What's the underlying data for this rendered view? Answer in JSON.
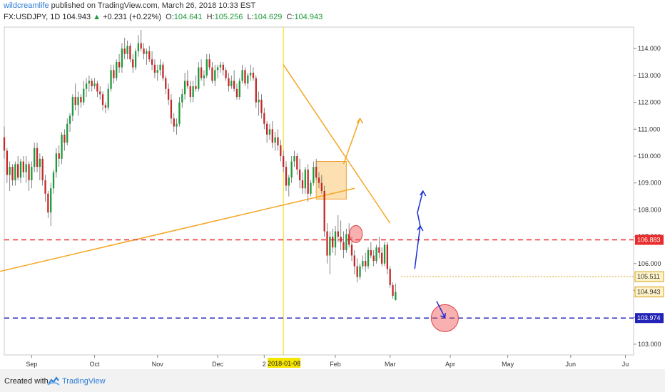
{
  "header": {
    "author": "wildcreamlife",
    "published_text": " published on TradingView.com, March 26, 2018 10:33 EST",
    "symbol": "FX:USDJPY, 1D",
    "last": "104.943",
    "change": "+0.231 (+0.22%)",
    "o_label": "O:",
    "o_value": "104.641",
    "h_label": "H:",
    "h_value": "105.256",
    "l_label": "L:",
    "l_value": "104.629",
    "c_label": "C:",
    "c_value": "104.943",
    "up_color": "#1d9a3a"
  },
  "footer": {
    "created_with": "Created with",
    "brand": "TradingView"
  },
  "chart_data": {
    "type": "candlestick",
    "symbol": "FX:USDJPY",
    "timeframe": "1D",
    "ylim": [
      102.6,
      114.8
    ],
    "y_ticks": [
      103.0,
      104.0,
      105.0,
      106.0,
      107.0,
      108.0,
      109.0,
      110.0,
      111.0,
      112.0,
      113.0,
      114.0
    ],
    "y_tick_labels": [
      "103.000",
      "104.000",
      "105.000",
      "106.000",
      "107.000",
      "108.000",
      "109.000",
      "110.000",
      "111.000",
      "112.000",
      "113.000",
      "114.000"
    ],
    "x_ticks": [
      {
        "label": "Sep",
        "idx": 10
      },
      {
        "label": "Oct",
        "idx": 33
      },
      {
        "label": "Nov",
        "idx": 56
      },
      {
        "label": "Dec",
        "idx": 78
      },
      {
        "label": "2",
        "idx": 95
      },
      {
        "label": "Feb",
        "idx": 121
      },
      {
        "label": "Mar",
        "idx": 141
      },
      {
        "label": "Apr",
        "idx": 163
      },
      {
        "label": "May",
        "idx": 184
      },
      {
        "label": "Jun",
        "idx": 207
      },
      {
        "label": "Ju",
        "idx": 227
      }
    ],
    "x_index_range": [
      0,
      230
    ],
    "cursor": {
      "idx": 102,
      "label": "2018-01-08"
    },
    "price_lines": [
      {
        "price": 106.883,
        "label": "106.883",
        "color": "#e82c2c",
        "style": "dashed"
      },
      {
        "price": 105.511,
        "label": "105.511",
        "color": "#d4a017",
        "style": "dotted",
        "start_idx": 145
      },
      {
        "price": 104.943,
        "label": "104.943",
        "color": "#d4a017",
        "style": "none"
      },
      {
        "price": 103.974,
        "label": "103.974",
        "color": "#2323b8",
        "style": "dashed"
      }
    ],
    "candles": [
      [
        110.7,
        111.1,
        109.9,
        110.2
      ],
      [
        110.2,
        110.3,
        109.0,
        109.3
      ],
      [
        109.3,
        109.8,
        108.7,
        109.6
      ],
      [
        109.6,
        109.7,
        108.9,
        109.1
      ],
      [
        109.1,
        109.8,
        108.9,
        109.7
      ],
      [
        109.7,
        110.0,
        109.1,
        109.2
      ],
      [
        109.2,
        109.9,
        109.0,
        109.8
      ],
      [
        109.8,
        110.0,
        109.2,
        109.4
      ],
      [
        109.4,
        110.0,
        109.0,
        109.7
      ],
      [
        109.7,
        109.8,
        108.7,
        109.1
      ],
      [
        109.1,
        109.8,
        108.8,
        109.6
      ],
      [
        109.6,
        110.5,
        109.4,
        110.3
      ],
      [
        110.3,
        110.5,
        109.4,
        109.6
      ],
      [
        109.6,
        110.1,
        109.1,
        109.9
      ],
      [
        109.9,
        110.0,
        108.9,
        109.1
      ],
      [
        109.1,
        109.3,
        108.3,
        108.6
      ],
      [
        108.6,
        108.7,
        107.7,
        107.9
      ],
      [
        107.9,
        109.0,
        107.4,
        108.8
      ],
      [
        108.8,
        109.5,
        108.6,
        109.4
      ],
      [
        109.4,
        110.3,
        109.2,
        110.1
      ],
      [
        110.1,
        110.4,
        109.6,
        109.9
      ],
      [
        109.9,
        110.9,
        109.7,
        110.8
      ],
      [
        110.8,
        111.0,
        110.2,
        110.5
      ],
      [
        110.5,
        111.4,
        110.4,
        111.2
      ],
      [
        111.2,
        111.6,
        110.9,
        111.5
      ],
      [
        111.5,
        112.3,
        111.3,
        112.2
      ],
      [
        112.2,
        112.7,
        111.7,
        111.9
      ],
      [
        111.9,
        112.4,
        111.5,
        112.2
      ],
      [
        112.2,
        112.3,
        111.8,
        112.0
      ],
      [
        112.0,
        112.8,
        111.9,
        112.5
      ],
      [
        112.5,
        112.9,
        112.2,
        112.7
      ],
      [
        112.7,
        113.0,
        112.4,
        112.8
      ],
      [
        112.8,
        112.9,
        112.4,
        112.6
      ],
      [
        112.6,
        112.9,
        112.5,
        112.7
      ],
      [
        112.7,
        112.8,
        112.2,
        112.4
      ],
      [
        112.4,
        112.6,
        112.1,
        112.3
      ],
      [
        112.3,
        112.4,
        111.7,
        111.9
      ],
      [
        111.9,
        112.0,
        111.6,
        111.8
      ],
      [
        111.8,
        112.7,
        111.7,
        112.5
      ],
      [
        112.5,
        113.4,
        112.4,
        113.2
      ],
      [
        113.2,
        113.4,
        112.7,
        112.9
      ],
      [
        112.9,
        113.6,
        112.8,
        113.5
      ],
      [
        113.5,
        113.8,
        113.1,
        113.3
      ],
      [
        113.3,
        114.2,
        113.1,
        114.0
      ],
      [
        114.0,
        114.4,
        113.6,
        113.8
      ],
      [
        113.8,
        114.3,
        113.6,
        114.1
      ],
      [
        114.1,
        114.2,
        113.5,
        113.6
      ],
      [
        113.6,
        113.8,
        113.1,
        113.3
      ],
      [
        113.3,
        114.0,
        113.2,
        113.9
      ],
      [
        113.9,
        114.5,
        113.7,
        114.2
      ],
      [
        114.2,
        114.7,
        113.9,
        114.0
      ],
      [
        114.0,
        114.2,
        113.6,
        113.8
      ],
      [
        113.8,
        114.0,
        113.4,
        113.9
      ],
      [
        113.9,
        114.1,
        113.5,
        113.6
      ],
      [
        113.6,
        113.9,
        113.2,
        113.4
      ],
      [
        113.4,
        113.6,
        112.9,
        113.1
      ],
      [
        113.1,
        113.4,
        112.8,
        113.2
      ],
      [
        113.2,
        113.6,
        113.0,
        113.4
      ],
      [
        113.4,
        113.5,
        112.8,
        112.9
      ],
      [
        112.9,
        113.0,
        112.3,
        112.5
      ],
      [
        112.5,
        112.7,
        111.9,
        112.1
      ],
      [
        112.1,
        112.3,
        111.2,
        111.4
      ],
      [
        111.4,
        111.6,
        110.9,
        111.1
      ],
      [
        111.1,
        111.4,
        110.8,
        111.2
      ],
      [
        111.2,
        112.2,
        111.1,
        112.0
      ],
      [
        112.0,
        112.5,
        111.8,
        112.3
      ],
      [
        112.3,
        113.1,
        112.1,
        112.8
      ],
      [
        112.8,
        113.2,
        112.5,
        112.6
      ],
      [
        112.6,
        112.8,
        112.0,
        112.2
      ],
      [
        112.2,
        112.8,
        112.0,
        112.6
      ],
      [
        112.6,
        113.0,
        112.4,
        112.5
      ],
      [
        112.5,
        113.5,
        112.4,
        113.3
      ],
      [
        113.3,
        113.6,
        112.8,
        112.9
      ],
      [
        112.9,
        113.2,
        112.6,
        113.0
      ],
      [
        113.0,
        113.8,
        112.9,
        113.6
      ],
      [
        113.6,
        113.8,
        113.2,
        113.3
      ],
      [
        113.3,
        113.5,
        112.7,
        112.8
      ],
      [
        112.8,
        113.4,
        112.6,
        113.2
      ],
      [
        113.2,
        113.4,
        112.9,
        113.3
      ],
      [
        113.3,
        113.5,
        113.1,
        113.4
      ],
      [
        113.4,
        113.5,
        113.0,
        113.2
      ],
      [
        113.2,
        113.3,
        112.8,
        112.9
      ],
      [
        112.9,
        113.1,
        112.4,
        112.6
      ],
      [
        112.6,
        113.0,
        112.5,
        112.8
      ],
      [
        112.8,
        113.2,
        112.4,
        112.5
      ],
      [
        112.5,
        112.7,
        112.1,
        112.2
      ],
      [
        112.2,
        112.9,
        112.1,
        112.8
      ],
      [
        112.8,
        113.4,
        112.7,
        113.2
      ],
      [
        113.2,
        113.3,
        112.6,
        112.7
      ],
      [
        112.7,
        113.1,
        112.5,
        113.0
      ],
      [
        113.0,
        113.4,
        112.8,
        113.1
      ],
      [
        113.1,
        113.3,
        112.8,
        112.9
      ],
      [
        112.9,
        113.0,
        111.8,
        112.0
      ],
      [
        112.0,
        112.4,
        111.5,
        112.1
      ],
      [
        112.1,
        112.3,
        111.4,
        111.6
      ],
      [
        111.6,
        111.8,
        111.0,
        111.2
      ],
      [
        111.2,
        111.3,
        110.5,
        110.8
      ],
      [
        110.8,
        111.2,
        110.6,
        111.0
      ],
      [
        111.0,
        111.3,
        110.3,
        110.5
      ],
      [
        110.5,
        110.9,
        110.2,
        110.7
      ],
      [
        110.7,
        111.0,
        110.2,
        110.4
      ],
      [
        110.4,
        110.6,
        109.8,
        110.0
      ],
      [
        110.0,
        110.2,
        109.4,
        109.6
      ],
      [
        109.6,
        109.8,
        108.7,
        108.9
      ],
      [
        108.9,
        109.3,
        108.5,
        109.2
      ],
      [
        109.2,
        110.0,
        109.0,
        109.8
      ],
      [
        109.8,
        110.2,
        109.6,
        110.0
      ],
      [
        110.0,
        110.1,
        109.3,
        109.5
      ],
      [
        109.5,
        109.9,
        108.8,
        109.1
      ],
      [
        109.1,
        109.4,
        108.6,
        108.8
      ],
      [
        108.8,
        109.6,
        108.6,
        109.5
      ],
      [
        109.5,
        109.7,
        108.3,
        108.6
      ],
      [
        108.6,
        109.1,
        108.5,
        109.0
      ],
      [
        109.0,
        109.8,
        108.9,
        109.6
      ],
      [
        109.6,
        109.9,
        109.1,
        109.2
      ],
      [
        109.2,
        109.4,
        108.8,
        109.0
      ],
      [
        109.0,
        109.3,
        108.6,
        108.7
      ],
      [
        108.7,
        108.9,
        107.0,
        107.2
      ],
      [
        107.2,
        107.5,
        106.0,
        106.3
      ],
      [
        106.3,
        107.2,
        105.6,
        107.0
      ],
      [
        107.0,
        107.3,
        106.4,
        106.6
      ],
      [
        106.6,
        107.4,
        106.3,
        107.2
      ],
      [
        107.2,
        107.8,
        106.8,
        107.0
      ],
      [
        107.0,
        107.6,
        106.5,
        106.8
      ],
      [
        106.8,
        107.2,
        106.2,
        106.5
      ],
      [
        106.5,
        107.3,
        106.4,
        107.1
      ],
      [
        107.1,
        107.5,
        106.6,
        106.7
      ],
      [
        106.7,
        107.0,
        106.1,
        106.3
      ],
      [
        106.3,
        106.5,
        105.6,
        105.9
      ],
      [
        105.9,
        106.2,
        105.3,
        105.5
      ],
      [
        105.5,
        106.0,
        105.4,
        105.9
      ],
      [
        105.9,
        106.3,
        105.8,
        106.1
      ],
      [
        106.1,
        106.4,
        105.7,
        105.9
      ],
      [
        105.9,
        106.6,
        105.8,
        106.5
      ],
      [
        106.5,
        106.8,
        106.2,
        106.3
      ],
      [
        106.3,
        106.5,
        105.9,
        106.1
      ],
      [
        106.1,
        106.7,
        106.0,
        106.6
      ],
      [
        106.6,
        107.0,
        106.2,
        106.4
      ],
      [
        106.4,
        106.6,
        105.9,
        106.0
      ],
      [
        106.0,
        106.8,
        105.9,
        106.7
      ],
      [
        106.7,
        106.8,
        105.6,
        105.8
      ],
      [
        105.8,
        105.9,
        105.1,
        105.2
      ],
      [
        105.2,
        105.3,
        104.7,
        104.8
      ],
      [
        104.641,
        105.256,
        104.629,
        104.943
      ]
    ],
    "annotations": {
      "down_trendline": [
        [
          102,
          113.4
        ],
        [
          141,
          107.5
        ]
      ],
      "up_trendline": [
        [
          -2,
          105.7
        ],
        [
          128,
          108.8
        ]
      ],
      "green_box_1": {
        "x0": 114,
        "x1": 125,
        "y0": 108.4,
        "y1": 109.8
      },
      "orange_arrow": [
        [
          124,
          109.7
        ],
        [
          130,
          111.4
        ]
      ],
      "red_circle_small": {
        "idx": 128.5,
        "price": 107.1
      },
      "blue_arrow_up": [
        [
          150,
          105.8
        ],
        [
          152,
          107.4
        ],
        [
          151,
          107.9
        ],
        [
          153,
          108.7
        ]
      ],
      "blue_arrow_down": [
        [
          158,
          104.6
        ],
        [
          161,
          104.0
        ]
      ],
      "target_circle": {
        "idx": 161,
        "price": 103.97
      }
    }
  }
}
